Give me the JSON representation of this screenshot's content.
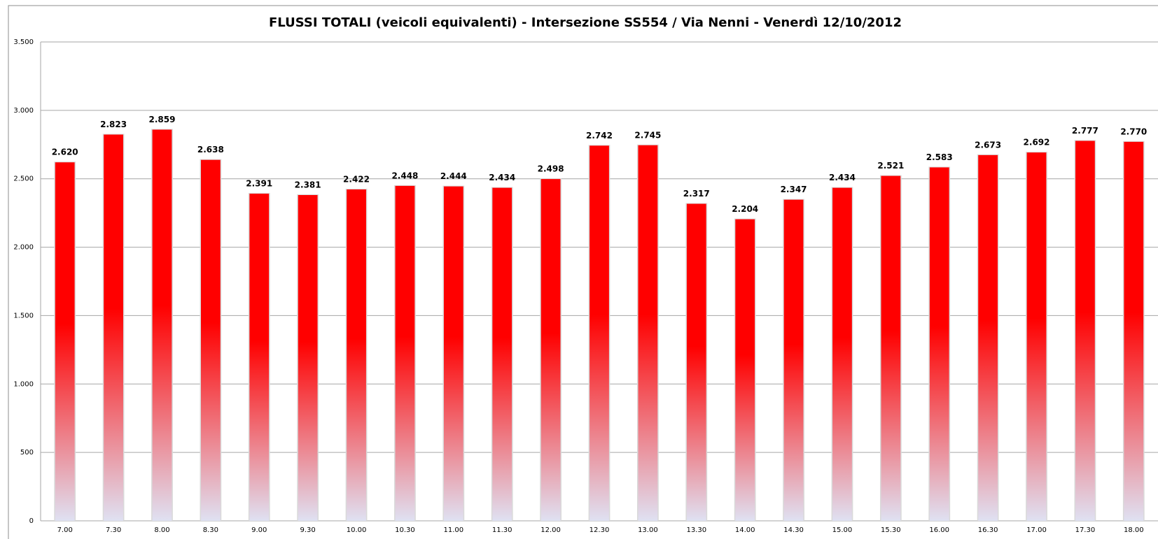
{
  "chart_data": {
    "type": "bar",
    "title": "FLUSSI TOTALI (veicoli equivalenti)  - Intersezione SS554 / Via Nenni - Venerdì 12/10/2012",
    "categories": [
      "7.00",
      "7.30",
      "8.00",
      "8.30",
      "9.00",
      "9.30",
      "10.00",
      "10.30",
      "11.00",
      "11.30",
      "12.00",
      "12.30",
      "13.00",
      "13.30",
      "14.00",
      "14.30",
      "15.00",
      "15.30",
      "16.00",
      "16.30",
      "17.00",
      "17.30",
      "18.00"
    ],
    "values": [
      2620,
      2823,
      2859,
      2638,
      2391,
      2381,
      2422,
      2448,
      2444,
      2434,
      2498,
      2742,
      2745,
      2317,
      2204,
      2347,
      2434,
      2521,
      2583,
      2673,
      2692,
      2777,
      2770
    ],
    "value_labels": [
      "2.620",
      "2.823",
      "2.859",
      "2.638",
      "2.391",
      "2.381",
      "2.422",
      "2.448",
      "2.444",
      "2.434",
      "2.498",
      "2.742",
      "2.745",
      "2.317",
      "2.204",
      "2.347",
      "2.434",
      "2.521",
      "2.583",
      "2.673",
      "2.692",
      "2.777",
      "2.770"
    ],
    "color": "#ff0000",
    "ylim": [
      0,
      3500
    ],
    "yticks": [
      0,
      500,
      {
        "value": 1000,
        "label": "1.000"
      },
      {
        "value": 1500,
        "label": "1.500"
      },
      {
        "value": 2000,
        "label": "2.000"
      },
      {
        "value": 2500,
        "label": "2.500"
      },
      {
        "value": 3000,
        "label": "3.000"
      },
      {
        "value": 3500,
        "label": "3.500"
      }
    ],
    "grid": true
  }
}
